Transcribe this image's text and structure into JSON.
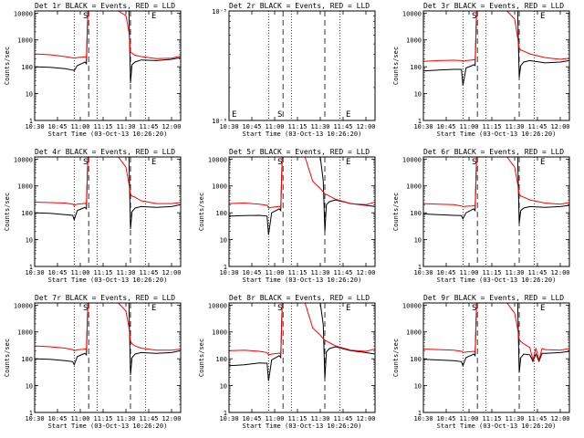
{
  "chart_data": {
    "type": "line",
    "x_tick_labels": [
      "10:30",
      "10:45",
      "11:00",
      "11:15",
      "11:30",
      "11:45",
      "12:00"
    ],
    "xlabel": "Start Time (03-Oct-13 10:26:20)",
    "ylabel": "Counts/sec",
    "yscale": "log",
    "ylim": [
      1,
      12000
    ],
    "xlim_minutes_after_1030": [
      0,
      96
    ],
    "dotted_lines_minutes": [
      26,
      41,
      73
    ],
    "dashed_lines_minutes": [
      35.5,
      63
    ],
    "legend": "BLACK = Events, RED = LLD",
    "series_colors": {
      "events": "#000000",
      "lld": "#ff0000"
    },
    "panels": [
      {
        "title": "Det 1r BLACK = Events, RED = LLD",
        "markers": [
          {
            "label": "S",
            "x": 33
          },
          {
            "label": "E",
            "x": 78
          }
        ],
        "series": [
          {
            "name": "Events",
            "x": [
              0,
              10,
              20,
              25,
              26,
              28,
              32,
              33,
              34,
              35,
              36,
              38,
              42,
              50,
              55,
              60,
              62,
              63,
              64,
              66,
              70,
              80,
              90,
              96
            ],
            "y": [
              100,
              95,
              85,
              75,
              72,
              110,
              140,
              150,
              130,
              12000,
              12000,
              12000,
              12000,
              12000,
              12000,
              12000,
              12000,
              25,
              120,
              150,
              180,
              170,
              190,
              220
            ]
          },
          {
            "name": "LLD",
            "x": [
              0,
              10,
              20,
              25,
              26,
              28,
              32,
              33,
              34,
              35,
              36,
              38,
              42,
              50,
              55,
              60,
              62,
              63,
              64,
              66,
              70,
              80,
              90,
              96
            ],
            "y": [
              300,
              280,
              240,
              215,
              210,
              220,
              230,
              235,
              220,
              12000,
              12000,
              12000,
              12000,
              12000,
              12000,
              8000,
              2000,
              350,
              320,
              270,
              240,
              200,
              210,
              250
            ]
          }
        ]
      },
      {
        "title": "Det 2r BLACK = Events, RED = LLD",
        "ylim": [
          1e-06,
          1e-05
        ],
        "markers": [
          {
            "label": "S",
            "x": 33
          },
          {
            "label": "E",
            "x": 78
          }
        ],
        "y_tick_labels": [
          "10⁻⁶",
          "10⁻⁵"
        ],
        "series": []
      },
      {
        "title": "Det 3r BLACK = Events, RED = LLD",
        "markers": [
          {
            "label": "S",
            "x": 33
          },
          {
            "label": "E",
            "x": 78
          }
        ],
        "series": [
          {
            "name": "Events",
            "x": [
              0,
              10,
              20,
              25,
              26,
              28,
              32,
              33,
              34,
              35,
              36,
              38,
              42,
              50,
              55,
              60,
              62,
              63,
              64,
              66,
              70,
              80,
              90,
              96
            ],
            "y": [
              70,
              75,
              80,
              80,
              20,
              90,
              110,
              120,
              110,
              12000,
              12000,
              12000,
              12000,
              12000,
              12000,
              12000,
              12000,
              40,
              110,
              150,
              170,
              140,
              150,
              170
            ]
          },
          {
            "name": "LLD",
            "x": [
              0,
              10,
              20,
              25,
              26,
              28,
              32,
              33,
              34,
              35,
              36,
              38,
              42,
              50,
              55,
              60,
              62,
              63,
              64,
              66,
              70,
              80,
              90,
              96
            ],
            "y": [
              160,
              170,
              175,
              170,
              160,
              170,
              180,
              185,
              180,
              12000,
              12000,
              12000,
              12000,
              12000,
              12000,
              6000,
              1200,
              500,
              420,
              380,
              300,
              220,
              190,
              210
            ]
          }
        ]
      },
      {
        "title": "Det 4r BLACK = Events, RED = LLD",
        "markers": [
          {
            "label": "S",
            "x": 33
          },
          {
            "label": "E",
            "x": 78
          }
        ],
        "series": [
          {
            "name": "Events",
            "x": [
              0,
              10,
              20,
              25,
              26,
              28,
              32,
              33,
              34,
              35,
              36,
              38,
              42,
              50,
              55,
              60,
              62,
              63,
              64,
              66,
              70,
              80,
              90,
              96
            ],
            "y": [
              100,
              95,
              85,
              80,
              55,
              120,
              150,
              160,
              140,
              12000,
              12000,
              12000,
              12000,
              12000,
              12000,
              12000,
              12000,
              25,
              110,
              150,
              170,
              160,
              170,
              200
            ]
          },
          {
            "name": "LLD",
            "x": [
              0,
              10,
              20,
              25,
              26,
              28,
              32,
              33,
              34,
              35,
              36,
              38,
              42,
              50,
              55,
              60,
              62,
              63,
              64,
              66,
              70,
              80,
              90,
              96
            ],
            "y": [
              250,
              240,
              230,
              210,
              190,
              210,
              220,
              225,
              210,
              12000,
              12000,
              12000,
              12000,
              12000,
              12000,
              5000,
              1200,
              500,
              420,
              380,
              280,
              220,
              220,
              240
            ]
          }
        ]
      },
      {
        "title": "Det 5r BLACK = Events, RED = LLD",
        "markers": [
          {
            "label": "S",
            "x": 33
          },
          {
            "label": "E",
            "x": 78
          }
        ],
        "series": [
          {
            "name": "Events",
            "x": [
              0,
              10,
              20,
              25,
              26,
              28,
              32,
              33,
              34,
              35,
              36,
              38,
              42,
              50,
              55,
              60,
              62,
              63,
              64,
              66,
              70,
              80,
              90,
              96
            ],
            "y": [
              75,
              78,
              80,
              75,
              15,
              100,
              130,
              140,
              120,
              12000,
              12000,
              12000,
              12000,
              12000,
              12000,
              12000,
              1500,
              20,
              200,
              260,
              300,
              220,
              190,
              170
            ]
          },
          {
            "name": "LLD",
            "x": [
              0,
              10,
              20,
              25,
              26,
              28,
              32,
              33,
              34,
              35,
              36,
              38,
              42,
              50,
              55,
              60,
              62,
              63,
              64,
              66,
              70,
              80,
              90,
              96
            ],
            "y": [
              220,
              230,
              210,
              190,
              150,
              160,
              170,
              175,
              160,
              12000,
              12000,
              12000,
              12000,
              12000,
              1500,
              800,
              600,
              500,
              480,
              420,
              320,
              220,
              200,
              250
            ]
          }
        ]
      },
      {
        "title": "Det 6r BLACK = Events, RED = LLD",
        "markers": [
          {
            "label": "S",
            "x": 33
          },
          {
            "label": "E",
            "x": 78
          }
        ],
        "series": [
          {
            "name": "Events",
            "x": [
              0,
              10,
              20,
              25,
              26,
              28,
              32,
              33,
              34,
              35,
              36,
              38,
              42,
              50,
              55,
              60,
              62,
              63,
              64,
              66,
              70,
              80,
              90,
              96
            ],
            "y": [
              90,
              85,
              80,
              78,
              60,
              100,
              130,
              140,
              120,
              12000,
              12000,
              12000,
              12000,
              12000,
              12000,
              12000,
              12000,
              40,
              120,
              150,
              170,
              160,
              170,
              190
            ]
          },
          {
            "name": "LLD",
            "x": [
              0,
              10,
              20,
              25,
              26,
              28,
              32,
              33,
              34,
              35,
              36,
              38,
              42,
              50,
              55,
              60,
              62,
              63,
              64,
              66,
              70,
              80,
              90,
              96
            ],
            "y": [
              220,
              210,
              200,
              180,
              170,
              175,
              180,
              185,
              175,
              12000,
              12000,
              12000,
              12000,
              12000,
              12000,
              5000,
              1200,
              500,
              420,
              380,
              300,
              230,
              210,
              240
            ]
          }
        ]
      },
      {
        "title": "Det 7r BLACK = Events, RED = LLD",
        "markers": [
          {
            "label": "S",
            "x": 33
          },
          {
            "label": "E",
            "x": 78
          }
        ],
        "series": [
          {
            "name": "Events",
            "x": [
              0,
              10,
              20,
              25,
              26,
              28,
              32,
              33,
              34,
              35,
              36,
              38,
              42,
              50,
              55,
              60,
              62,
              63,
              64,
              66,
              70,
              80,
              90,
              96
            ],
            "y": [
              100,
              95,
              85,
              78,
              60,
              120,
              150,
              160,
              140,
              12000,
              12000,
              12000,
              12000,
              12000,
              12000,
              12000,
              12000,
              25,
              110,
              150,
              170,
              160,
              170,
              200
            ]
          },
          {
            "name": "LLD",
            "x": [
              0,
              10,
              20,
              25,
              26,
              28,
              32,
              33,
              34,
              35,
              36,
              38,
              42,
              50,
              55,
              60,
              62,
              63,
              64,
              66,
              70,
              80,
              90,
              96
            ],
            "y": [
              300,
              280,
              250,
              220,
              200,
              215,
              225,
              230,
              220,
              12000,
              12000,
              12000,
              12000,
              12000,
              12000,
              6000,
              1500,
              450,
              360,
              300,
              250,
              210,
              210,
              230
            ]
          }
        ]
      },
      {
        "title": "Det 8r BLACK = Events, RED = LLD",
        "markers": [
          {
            "label": "S",
            "x": 33
          },
          {
            "label": "E",
            "x": 78
          }
        ],
        "series": [
          {
            "name": "Events",
            "x": [
              0,
              10,
              20,
              25,
              26,
              28,
              32,
              33,
              34,
              35,
              36,
              38,
              42,
              50,
              55,
              60,
              62,
              63,
              64,
              66,
              70,
              80,
              90,
              96
            ],
            "y": [
              55,
              60,
              70,
              68,
              15,
              90,
              120,
              130,
              110,
              12000,
              12000,
              12000,
              12000,
              12000,
              12000,
              12000,
              1800,
              18,
              180,
              240,
              280,
              200,
              170,
              150
            ]
          },
          {
            "name": "LLD",
            "x": [
              0,
              10,
              20,
              25,
              26,
              28,
              32,
              33,
              34,
              35,
              36,
              38,
              42,
              50,
              55,
              60,
              62,
              63,
              64,
              66,
              70,
              80,
              90,
              96
            ],
            "y": [
              200,
              210,
              190,
              170,
              140,
              150,
              160,
              165,
              150,
              12000,
              12000,
              12000,
              12000,
              12000,
              1400,
              760,
              560,
              480,
              460,
              400,
              300,
              210,
              190,
              230
            ]
          }
        ]
      },
      {
        "title": "Det 9r BLACK = Events, RED = LLD",
        "markers": [
          {
            "label": "S",
            "x": 33
          },
          {
            "label": "E",
            "x": 78
          }
        ],
        "series": [
          {
            "name": "Events",
            "x": [
              0,
              10,
              20,
              25,
              26,
              28,
              32,
              33,
              34,
              35,
              36,
              38,
              42,
              50,
              55,
              60,
              62,
              63,
              64,
              66,
              70,
              72,
              74,
              76,
              78,
              80,
              90,
              96
            ],
            "y": [
              95,
              90,
              85,
              78,
              55,
              110,
              140,
              150,
              130,
              12000,
              12000,
              12000,
              12000,
              12000,
              12000,
              12000,
              12000,
              30,
              110,
              150,
              140,
              80,
              150,
              80,
              160,
              160,
              170,
              190
            ]
          },
          {
            "name": "LLD",
            "x": [
              0,
              10,
              20,
              25,
              26,
              28,
              32,
              33,
              34,
              35,
              36,
              38,
              42,
              50,
              55,
              60,
              62,
              63,
              64,
              66,
              70,
              72,
              74,
              76,
              78,
              80,
              90,
              96
            ],
            "y": [
              230,
              220,
              210,
              190,
              170,
              180,
              185,
              190,
              180,
              12000,
              12000,
              12000,
              12000,
              12000,
              12000,
              5000,
              1300,
              520,
              440,
              360,
              260,
              90,
              250,
              90,
              240,
              220,
              210,
              240
            ]
          }
        ]
      }
    ]
  }
}
